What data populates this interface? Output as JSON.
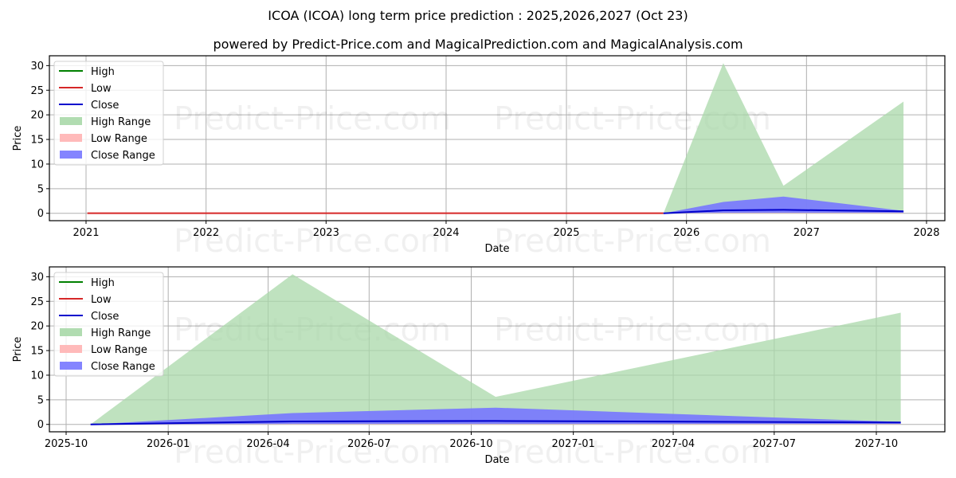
{
  "header": {
    "title": "ICOA (ICOA) long term price prediction : 2025,2026,2027 (Oct 23)",
    "subtitle": "powered by Predict-Price.com and MagicalPrediction.com and MagicalAnalysis.com"
  },
  "watermark": "Predict-Price.com",
  "colors": {
    "high": "#008000",
    "low": "#d62728",
    "close": "#0000cc",
    "high_range": "#a9d8a9",
    "low_range": "#ffb3b3",
    "close_range": "#7777ff",
    "grid": "#b0b0b0"
  },
  "legend": {
    "items": [
      {
        "label": "High",
        "kind": "line",
        "color": "#008000"
      },
      {
        "label": "Low",
        "kind": "line",
        "color": "#d62728"
      },
      {
        "label": "Close",
        "kind": "line",
        "color": "#0000cc"
      },
      {
        "label": "High Range",
        "kind": "patch",
        "color": "#a9d8a9"
      },
      {
        "label": "Low Range",
        "kind": "patch",
        "color": "#ffb3b3"
      },
      {
        "label": "Close Range",
        "kind": "patch",
        "color": "#7777ff"
      }
    ]
  },
  "chart_data": [
    {
      "type": "area",
      "title": "ICOA (ICOA) long term price prediction : 2025,2026,2027 (Oct 23)",
      "xlabel": "Date",
      "ylabel": "Price",
      "xticks": [
        "2021",
        "2022",
        "2023",
        "2024",
        "2025",
        "2026",
        "2027",
        "2028"
      ],
      "yticks": [
        0,
        5,
        10,
        15,
        20,
        25,
        30
      ],
      "ylim": [
        -1.5,
        32
      ],
      "grid": true,
      "legend_position": "upper left",
      "history": {
        "x": [
          "2021-01-05",
          "2025-10-23"
        ],
        "low": [
          0.02,
          0.02
        ],
        "close": [
          0.02,
          0.02
        ]
      },
      "forecast": {
        "x": [
          "2025-10-23",
          "2026-04-23",
          "2026-10-23",
          "2027-10-23"
        ],
        "high_range": [
          0.0,
          30.5,
          5.6,
          22.7
        ],
        "close_range_upper": [
          0.0,
          2.3,
          3.4,
          0.5
        ],
        "close": [
          0.0,
          0.6,
          0.7,
          0.4
        ],
        "low": [
          0.0,
          0.1,
          0.1,
          0.1
        ]
      }
    },
    {
      "type": "area",
      "title": "Zoomed forecast",
      "xlabel": "Date",
      "ylabel": "Price",
      "xticks": [
        "2025-10",
        "2026-01",
        "2026-04",
        "2026-07",
        "2026-10",
        "2027-01",
        "2027-04",
        "2027-07",
        "2027-10"
      ],
      "yticks": [
        0,
        5,
        10,
        15,
        20,
        25,
        30
      ],
      "ylim": [
        -1.5,
        32
      ],
      "grid": true,
      "legend_position": "upper left",
      "forecast": {
        "x": [
          "2025-10-23",
          "2026-04-23",
          "2026-10-23",
          "2027-10-23"
        ],
        "high_range": [
          0.0,
          30.5,
          5.6,
          22.7
        ],
        "close_range_upper": [
          0.0,
          2.3,
          3.4,
          0.5
        ],
        "close": [
          0.0,
          0.6,
          0.7,
          0.4
        ],
        "low": [
          0.0,
          0.1,
          0.1,
          0.1
        ]
      }
    }
  ],
  "plots": {
    "top": {
      "xlabel": "Date",
      "ylabel": "Price",
      "xticks": [
        "2021",
        "2022",
        "2023",
        "2024",
        "2025",
        "2026",
        "2027",
        "2028"
      ],
      "yticks": [
        "0",
        "5",
        "10",
        "15",
        "20",
        "25",
        "30"
      ]
    },
    "bottom": {
      "xlabel": "Date",
      "ylabel": "Price",
      "xticks": [
        "2025-10",
        "2026-01",
        "2026-04",
        "2026-07",
        "2026-10",
        "2027-01",
        "2027-04",
        "2027-07",
        "2027-10"
      ],
      "yticks": [
        "0",
        "5",
        "10",
        "15",
        "20",
        "25",
        "30"
      ]
    }
  }
}
